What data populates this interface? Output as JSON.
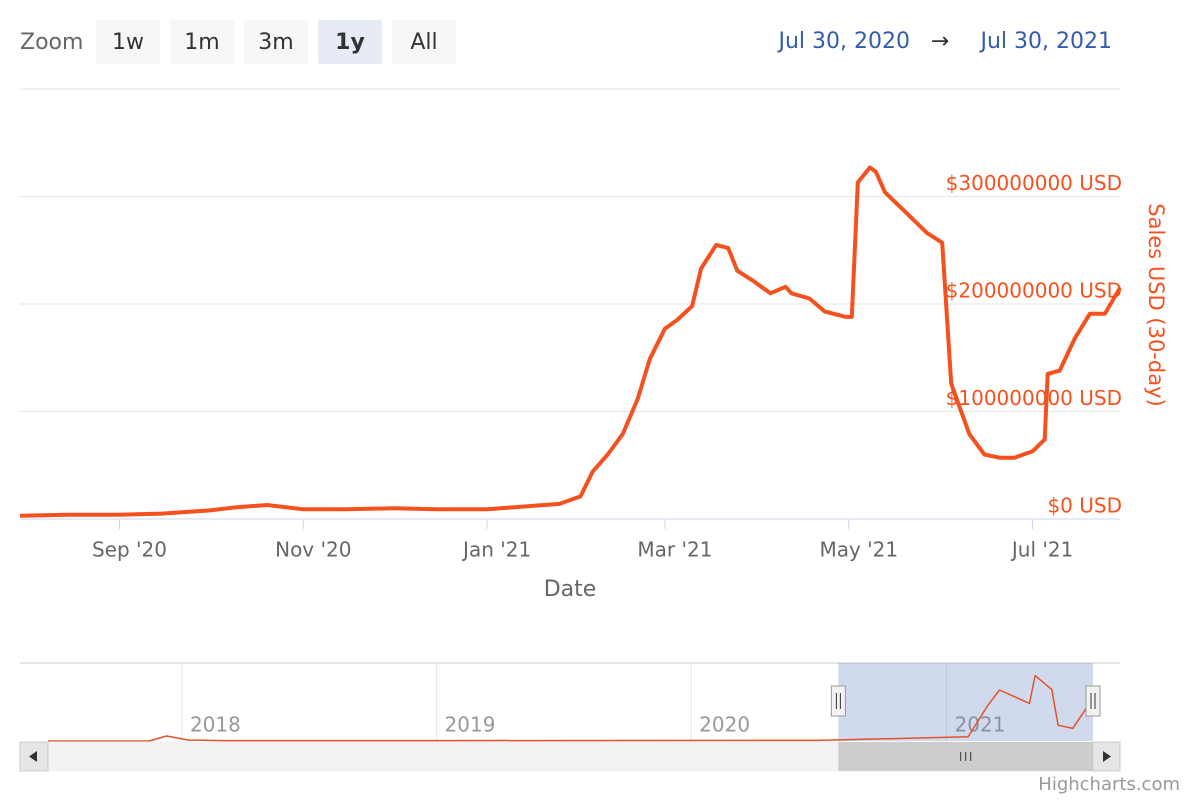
{
  "range_selector": {
    "label": "Zoom",
    "buttons": [
      "1w",
      "1m",
      "3m",
      "1y",
      "All"
    ],
    "selected": 3,
    "from": "Jul 30, 2020",
    "separator": "→",
    "to": "Jul 30, 2021"
  },
  "credits": "Highcharts.com",
  "chart_data": [
    {
      "type": "line",
      "x_label": "Date",
      "y_label": "Sales USD (30-day)",
      "color": "#f4511e",
      "grid": true,
      "x": [
        "2020-07-30",
        "2020-08-15",
        "2020-09-01",
        "2020-09-15",
        "2020-10-01",
        "2020-10-10",
        "2020-10-20",
        "2020-11-01",
        "2020-11-15",
        "2020-12-01",
        "2020-12-15",
        "2021-01-01",
        "2021-01-15",
        "2021-01-25",
        "2021-02-01",
        "2021-02-05",
        "2021-02-10",
        "2021-02-15",
        "2021-02-20",
        "2021-02-24",
        "2021-03-01",
        "2021-03-05",
        "2021-03-10",
        "2021-03-13",
        "2021-03-18",
        "2021-03-22",
        "2021-03-25",
        "2021-03-30",
        "2021-04-05",
        "2021-04-10",
        "2021-04-12",
        "2021-04-18",
        "2021-04-23",
        "2021-04-30",
        "2021-05-02",
        "2021-05-04",
        "2021-05-08",
        "2021-05-10",
        "2021-05-13",
        "2021-05-20",
        "2021-05-27",
        "2021-06-01",
        "2021-06-04",
        "2021-06-10",
        "2021-06-15",
        "2021-06-20",
        "2021-06-25",
        "2021-07-01",
        "2021-07-05",
        "2021-07-06",
        "2021-07-10",
        "2021-07-15",
        "2021-07-20",
        "2021-07-25",
        "2021-07-30"
      ],
      "values": [
        3000000,
        4000000,
        4000000,
        5000000,
        8000000,
        11000000,
        13000000,
        9000000,
        9000000,
        10000000,
        9000000,
        9000000,
        12000000,
        14000000,
        21000000,
        44000000,
        60000000,
        79000000,
        112000000,
        149000000,
        177000000,
        185000000,
        198000000,
        233000000,
        255000000,
        252000000,
        231000000,
        222000000,
        210000000,
        216000000,
        210000000,
        205000000,
        193000000,
        188000000,
        188000000,
        313000000,
        327000000,
        323000000,
        304000000,
        285000000,
        266000000,
        257000000,
        126000000,
        79000000,
        60000000,
        57000000,
        57000000,
        63000000,
        74000000,
        135000000,
        138000000,
        168000000,
        191000000,
        191000000,
        215000000
      ],
      "xlim": [
        "2020-07-30",
        "2021-07-30"
      ],
      "xticks": [
        {
          "value": "2020-09-01",
          "label": "Sep '20"
        },
        {
          "value": "2020-11-01",
          "label": "Nov '20"
        },
        {
          "value": "2021-01-01",
          "label": "Jan '21"
        },
        {
          "value": "2021-03-01",
          "label": "Mar '21"
        },
        {
          "value": "2021-05-01",
          "label": "May '21"
        },
        {
          "value": "2021-07-01",
          "label": "Jul '21"
        }
      ],
      "ylim": [
        0,
        400000000
      ],
      "yticks": [
        {
          "value": 0,
          "label": "$0 USD"
        },
        {
          "value": 100000000,
          "label": "$100000000 USD"
        },
        {
          "value": 200000000,
          "label": "$200000000 USD"
        },
        {
          "value": 300000000,
          "label": "$300000000 USD"
        }
      ]
    },
    {
      "type": "line",
      "color": "#e0522b",
      "x": [
        "2017-06-23",
        "2017-11-15",
        "2017-12-10",
        "2018-01-10",
        "2018-03-01",
        "2019-01-01",
        "2020-07-01",
        "2021-02-01",
        "2021-03-01",
        "2021-03-18",
        "2021-04-30",
        "2021-05-08",
        "2021-06-01",
        "2021-06-10",
        "2021-07-01",
        "2021-07-30"
      ],
      "values": [
        0,
        0,
        25000000,
        5000000,
        2000000,
        2000000,
        3000000,
        21000000,
        177000000,
        255000000,
        188000000,
        327000000,
        257000000,
        79000000,
        63000000,
        215000000
      ],
      "xlim": [
        "2017-06-23",
        "2021-07-30"
      ],
      "xticks": [
        {
          "value": "2018-01-01",
          "label": "2018"
        },
        {
          "value": "2019-01-01",
          "label": "2019"
        },
        {
          "value": "2020-01-01",
          "label": "2020"
        },
        {
          "value": "2021-01-01",
          "label": "2021"
        }
      ],
      "ylim": [
        0,
        390000000
      ]
    }
  ]
}
